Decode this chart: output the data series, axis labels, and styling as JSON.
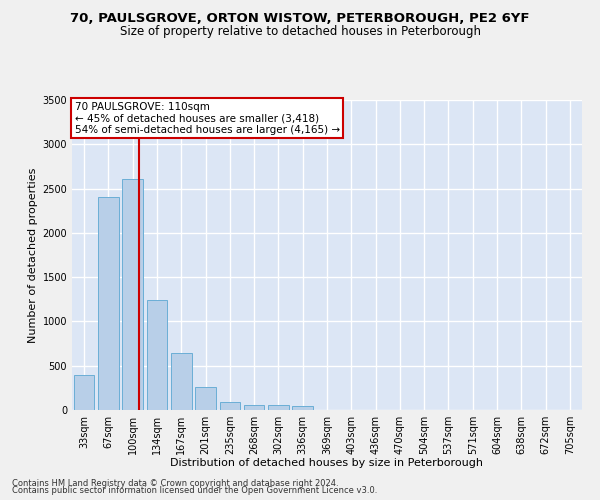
{
  "title_line1": "70, PAULSGROVE, ORTON WISTOW, PETERBOROUGH, PE2 6YF",
  "title_line2": "Size of property relative to detached houses in Peterborough",
  "xlabel": "Distribution of detached houses by size in Peterborough",
  "ylabel": "Number of detached properties",
  "categories": [
    "33sqm",
    "67sqm",
    "100sqm",
    "134sqm",
    "167sqm",
    "201sqm",
    "235sqm",
    "268sqm",
    "302sqm",
    "336sqm",
    "369sqm",
    "403sqm",
    "436sqm",
    "470sqm",
    "504sqm",
    "537sqm",
    "571sqm",
    "604sqm",
    "638sqm",
    "672sqm",
    "705sqm"
  ],
  "bar_values": [
    390,
    2400,
    2610,
    1240,
    640,
    255,
    95,
    60,
    55,
    40,
    0,
    0,
    0,
    0,
    0,
    0,
    0,
    0,
    0,
    0,
    0
  ],
  "bar_color": "#b8cfe8",
  "bar_edge_color": "#6baed6",
  "vline_color": "#cc0000",
  "annotation_text": "70 PAULSGROVE: 110sqm\n← 45% of detached houses are smaller (3,418)\n54% of semi-detached houses are larger (4,165) →",
  "annotation_box_color": "#ffffff",
  "annotation_box_edge": "#cc0000",
  "ylim": [
    0,
    3500
  ],
  "yticks": [
    0,
    500,
    1000,
    1500,
    2000,
    2500,
    3000,
    3500
  ],
  "background_color": "#dce6f5",
  "grid_color": "#ffffff",
  "fig_background": "#f0f0f0",
  "footer_line1": "Contains HM Land Registry data © Crown copyright and database right 2024.",
  "footer_line2": "Contains public sector information licensed under the Open Government Licence v3.0.",
  "title1_fontsize": 9.5,
  "title2_fontsize": 8.5,
  "xlabel_fontsize": 8,
  "ylabel_fontsize": 8,
  "tick_fontsize": 7,
  "annot_fontsize": 7.5
}
